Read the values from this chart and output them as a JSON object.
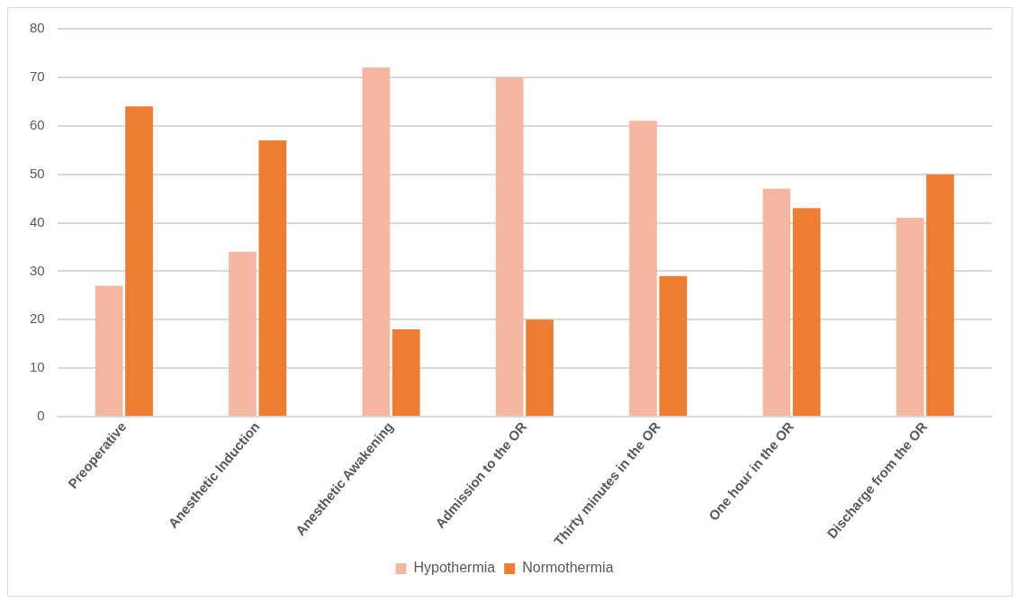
{
  "chart_data": {
    "type": "bar",
    "categories": [
      "Preoperative",
      "Anesthetic Induction",
      "Anesthetic Awakening",
      "Admission to the OR",
      "Thirty minutes in the OR",
      "One hour in the OR",
      "Discharge from the OR"
    ],
    "series": [
      {
        "name": "Hypothermia",
        "color": "#f4b8a2",
        "values": [
          27,
          34,
          72,
          70,
          61,
          47,
          41
        ]
      },
      {
        "name": "Normothermia",
        "color": "#ed7d31",
        "values": [
          64,
          57,
          18,
          20,
          29,
          43,
          50
        ]
      }
    ],
    "ylim": [
      0,
      80
    ],
    "yticks": [
      0,
      10,
      20,
      30,
      40,
      50,
      60,
      70,
      80
    ],
    "grid": "y",
    "legend": "bottom"
  }
}
